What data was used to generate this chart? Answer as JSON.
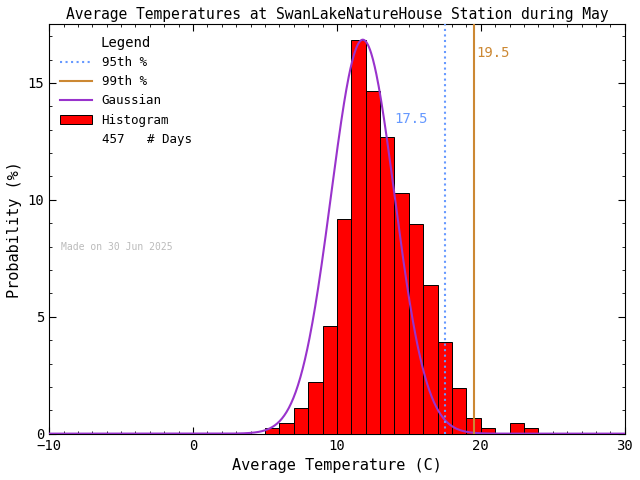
{
  "title": "Average Temperatures at SwanLakeNatureHouse Station during May",
  "xlabel": "Average Temperature (C)",
  "ylabel": "Probability (%)",
  "xlim": [
    -10,
    30
  ],
  "ylim": [
    0,
    17.5
  ],
  "n_days": 457,
  "percentile_95": 17.5,
  "percentile_99": 19.5,
  "mean_temp": 11.8,
  "std_temp": 2.2,
  "bin_edges": [
    5,
    6,
    7,
    8,
    9,
    10,
    11,
    12,
    13,
    14,
    15,
    16,
    17,
    18,
    19,
    20,
    21,
    22,
    23
  ],
  "bin_probs": [
    0.22,
    0.44,
    1.09,
    2.19,
    4.6,
    9.19,
    16.85,
    14.66,
    12.69,
    10.28,
    8.97,
    6.34,
    3.94,
    1.97,
    0.66,
    0.22,
    0.0,
    0.44,
    0.22
  ],
  "bar_color": "#ff0000",
  "bar_edgecolor": "#000000",
  "gaussian_color": "#9933cc",
  "line_95_color": "#6699ff",
  "line_99_color": "#cc8833",
  "background_color": "#ffffff",
  "made_on_text": "Made on 30 Jun 2025",
  "legend_title": "Legend",
  "label_95": "17.5",
  "label_99": "19.5"
}
